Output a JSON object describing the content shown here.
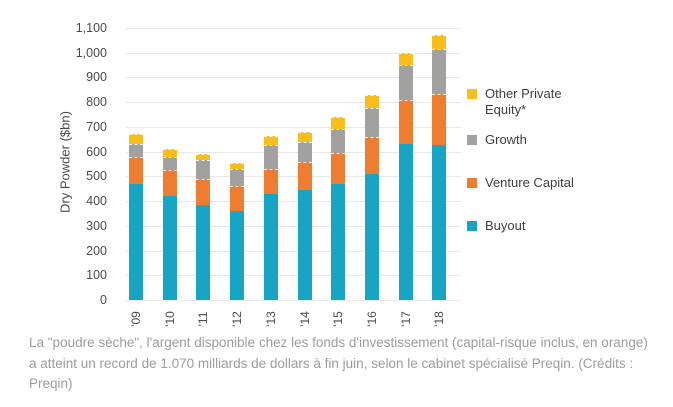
{
  "chart_data": {
    "type": "bar",
    "subtype": "stacked",
    "title": "",
    "ylabel": "Dry Powder ($bn)",
    "xlabel": "",
    "ylim": [
      0,
      1100
    ],
    "ytick_step": 100,
    "yticks_top_down": [
      "1,100",
      "1,000",
      "900",
      "800",
      "700",
      "600",
      "500",
      "400",
      "300",
      "200",
      "100",
      "0"
    ],
    "categories": [
      "'09",
      "'10",
      "'11",
      "'12",
      "'13",
      "'14",
      "'15",
      "'16",
      "'17",
      "'18"
    ],
    "series": [
      {
        "name": "Buyout",
        "color": "#17A5C6",
        "values": [
          470,
          420,
          385,
          360,
          430,
          445,
          470,
          510,
          630,
          625
        ]
      },
      {
        "name": "Venture Capital",
        "color": "#EE7D30",
        "values": [
          110,
          105,
          105,
          100,
          100,
          115,
          125,
          150,
          180,
          210
        ]
      },
      {
        "name": "Growth",
        "color": "#A1A19F",
        "values": [
          50,
          55,
          75,
          70,
          95,
          80,
          95,
          115,
          140,
          180
        ]
      },
      {
        "name": "Other Private Equity*",
        "color": "#FBBE18",
        "values": [
          40,
          30,
          25,
          25,
          40,
          40,
          50,
          55,
          50,
          55
        ]
      }
    ],
    "legend": {
      "position": "right",
      "order_top_down": [
        "Other Private Equity*",
        "Growth",
        "Venture Capital",
        "Buyout"
      ]
    },
    "grid": true
  },
  "caption": {
    "text": "La \"poudre sèche\", l'argent disponible chez les fonds d'investissement (capital-risque inclus, en orange) a atteint un record de 1.070 milliards de dollars à fin juin, selon le cabinet spécialisé Preqin. (Crédits : Preqin)"
  },
  "colors": {
    "background": "#FFFFFF",
    "gridline": "#E7E7E7",
    "axis_text": "#4A4A4A",
    "legend_text": "#3E3E3E",
    "caption_text": "#9C9C9C"
  }
}
